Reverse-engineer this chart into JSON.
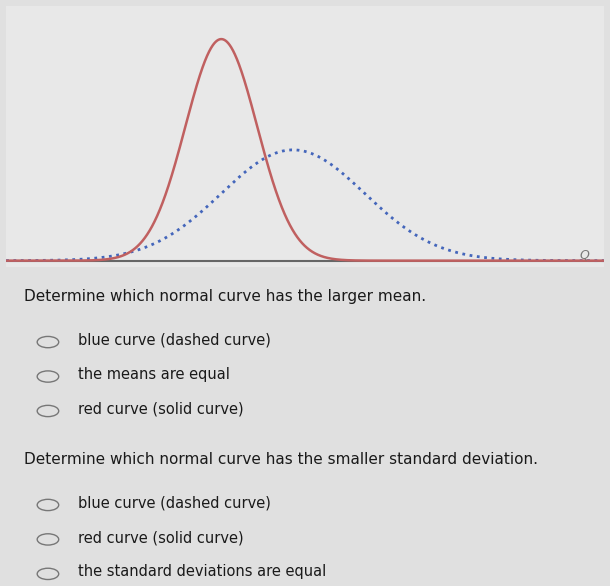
{
  "red_mean": 0.0,
  "red_std": 0.75,
  "blue_mean": 1.5,
  "blue_std": 1.5,
  "red_color": "#c06060",
  "blue_color": "#4466bb",
  "bg_color": "#e8e8e8",
  "text_bg_color": "#e0e0e0",
  "x_min": -4.5,
  "x_max": 8.0,
  "title_q1": "Determine which normal curve has the larger mean.",
  "options_q1": [
    "blue curve (dashed curve)",
    "the means are equal",
    "red curve (solid curve)"
  ],
  "title_q2": "Determine which normal curve has the smaller standard deviation.",
  "options_q2": [
    "blue curve (dashed curve)",
    "red curve (solid curve)",
    "the standard deviations are equal"
  ],
  "fig_width": 6.1,
  "fig_height": 5.86,
  "fontsize_title": 11.0,
  "fontsize_option": 10.5
}
